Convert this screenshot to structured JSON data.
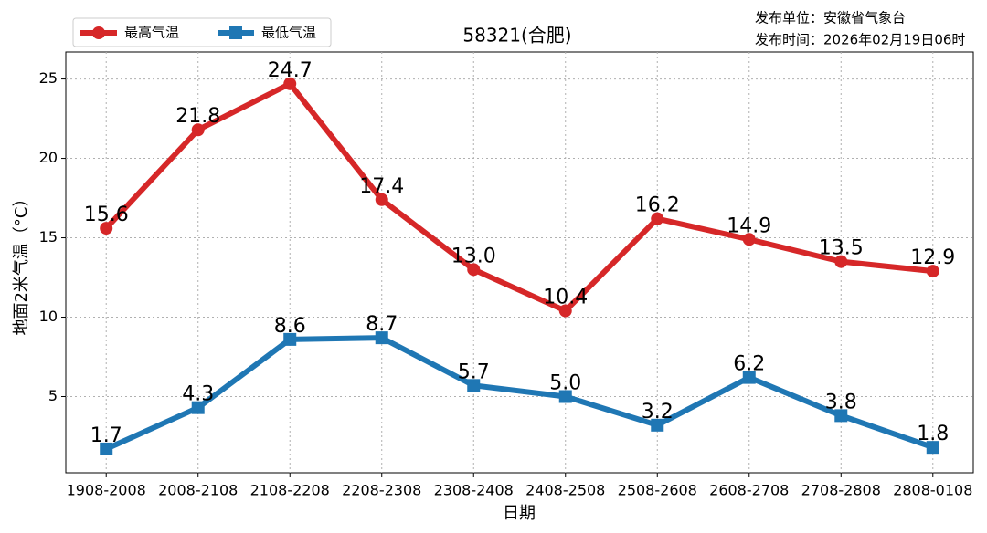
{
  "chart_data": {
    "type": "line",
    "title": "58321(合肥)",
    "publisher": "发布单位：安徽省气象台",
    "publish_time": "发布时间：2026年02月19日06时",
    "xlabel": "日期",
    "ylabel": "地面2米气温（°C）",
    "categories": [
      "1908-2008",
      "2008-2108",
      "2108-2208",
      "2208-2308",
      "2308-2408",
      "2408-2508",
      "2508-2608",
      "2608-2708",
      "2708-2808",
      "2808-0108"
    ],
    "series": [
      {
        "name": "最高气温",
        "color": "#d62728",
        "marker": "circle",
        "values": [
          15.6,
          21.8,
          24.7,
          17.4,
          13.0,
          10.4,
          16.2,
          14.9,
          13.5,
          12.9
        ],
        "value_labels": [
          "15.6",
          "21.8",
          "24.7",
          "17.4",
          "13.0",
          "10.4",
          "16.2",
          "14.9",
          "13.5",
          "12.9"
        ]
      },
      {
        "name": "最低气温",
        "color": "#1f77b4",
        "marker": "square",
        "values": [
          1.7,
          4.3,
          8.6,
          8.7,
          5.7,
          5.0,
          3.2,
          6.2,
          3.8,
          1.8
        ],
        "value_labels": [
          "1.7",
          "4.3",
          "8.6",
          "8.7",
          "5.7",
          "5.0",
          "3.2",
          "6.2",
          "3.8",
          "1.8"
        ]
      }
    ],
    "ylim": [
      0.2,
      26.7
    ],
    "yticks": [
      5,
      10,
      15,
      20,
      25
    ],
    "grid": true,
    "legend": "upper left"
  }
}
